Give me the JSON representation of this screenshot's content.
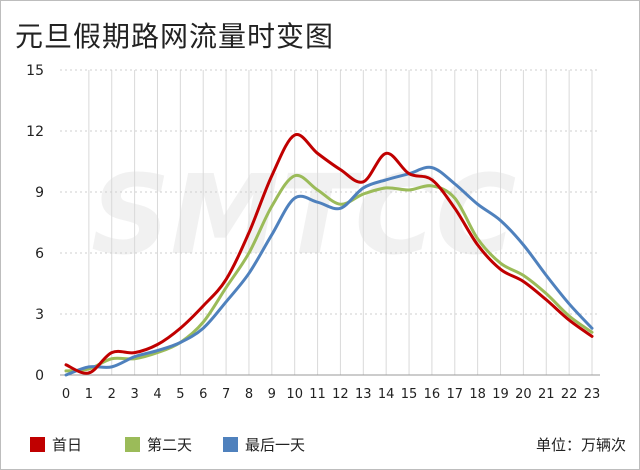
{
  "chart_data": {
    "type": "line",
    "title": "元旦假期路网流量时变图",
    "xlabel": "",
    "ylabel": "",
    "unit_label": "单位：万辆次",
    "ylim": [
      0,
      15
    ],
    "yticks": [
      0,
      3,
      6,
      9,
      12,
      15
    ],
    "x": [
      0,
      1,
      2,
      3,
      4,
      5,
      6,
      7,
      8,
      9,
      10,
      11,
      12,
      13,
      14,
      15,
      16,
      17,
      18,
      19,
      20,
      21,
      22,
      23
    ],
    "grid": "vertical",
    "legend_position": "bottom-left",
    "series": [
      {
        "name": "首日",
        "color": "#c00000",
        "values": [
          0.5,
          0.1,
          1.1,
          1.1,
          1.5,
          2.3,
          3.4,
          4.7,
          7.0,
          9.8,
          11.8,
          10.9,
          10.1,
          9.5,
          10.9,
          9.9,
          9.6,
          8.2,
          6.4,
          5.2,
          4.6,
          3.7,
          2.7,
          1.9
        ]
      },
      {
        "name": "第二天",
        "color": "#9bbb59",
        "values": [
          0.2,
          0.3,
          0.8,
          0.8,
          1.1,
          1.6,
          2.6,
          4.3,
          6.0,
          8.3,
          9.8,
          9.1,
          8.4,
          8.9,
          9.2,
          9.1,
          9.3,
          8.7,
          6.7,
          5.5,
          4.9,
          4.0,
          2.9,
          2.1
        ]
      },
      {
        "name": "最后一天",
        "color": "#4f81bd",
        "values": [
          0.0,
          0.4,
          0.4,
          0.9,
          1.2,
          1.6,
          2.3,
          3.6,
          5.0,
          6.9,
          8.7,
          8.5,
          8.2,
          9.2,
          9.6,
          9.9,
          10.2,
          9.4,
          8.4,
          7.6,
          6.4,
          4.9,
          3.5,
          2.3
        ]
      }
    ]
  }
}
